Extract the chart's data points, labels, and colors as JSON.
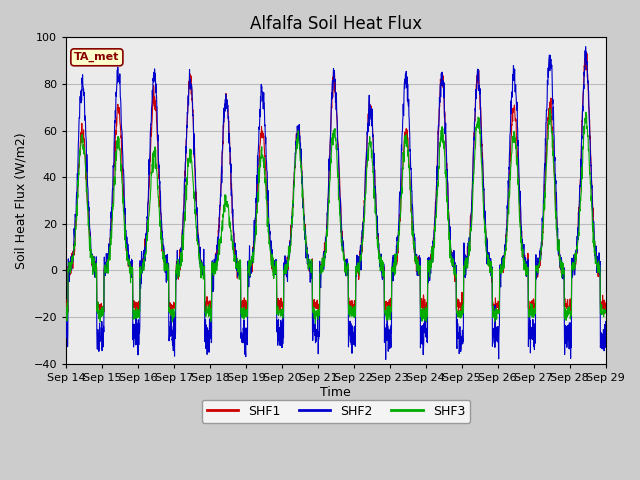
{
  "title": "Alfalfa Soil Heat Flux",
  "xlabel": "Time",
  "ylabel": "Soil Heat Flux (W/m2)",
  "ylim": [
    -40,
    100
  ],
  "x_tick_labels": [
    "Sep 14",
    "Sep 15",
    "Sep 16",
    "Sep 17",
    "Sep 18",
    "Sep 19",
    "Sep 20",
    "Sep 21",
    "Sep 22",
    "Sep 23",
    "Sep 24",
    "Sep 25",
    "Sep 26",
    "Sep 27",
    "Sep 28",
    "Sep 29"
  ],
  "shf1_color": "#cc0000",
  "shf2_color": "#0000cc",
  "shf3_color": "#00aa00",
  "legend_label1": "SHF1",
  "legend_label2": "SHF2",
  "legend_label3": "SHF3",
  "annotation_text": "TA_met",
  "annotation_bg": "#ffffcc",
  "annotation_border": "#880000",
  "grid_color": "#bbbbbb",
  "plot_bg": "#ebebeb",
  "title_fontsize": 12,
  "axis_label_fontsize": 9,
  "tick_fontsize": 8,
  "days": 15,
  "pts_per_day": 144,
  "shf1_peaks": [
    60,
    70,
    75,
    82,
    74,
    60,
    60,
    83,
    71,
    60,
    83,
    84,
    70,
    71,
    91
  ],
  "shf2_peaks": [
    80,
    84,
    83,
    82,
    74,
    78,
    60,
    83,
    71,
    83,
    83,
    84,
    84,
    92,
    91
  ],
  "shf3_peaks": [
    57,
    55,
    50,
    50,
    30,
    51,
    57,
    60,
    55,
    57,
    59,
    65,
    58,
    65,
    65
  ],
  "shf1_night": -15,
  "shf2_night": -28,
  "shf3_night": -18
}
